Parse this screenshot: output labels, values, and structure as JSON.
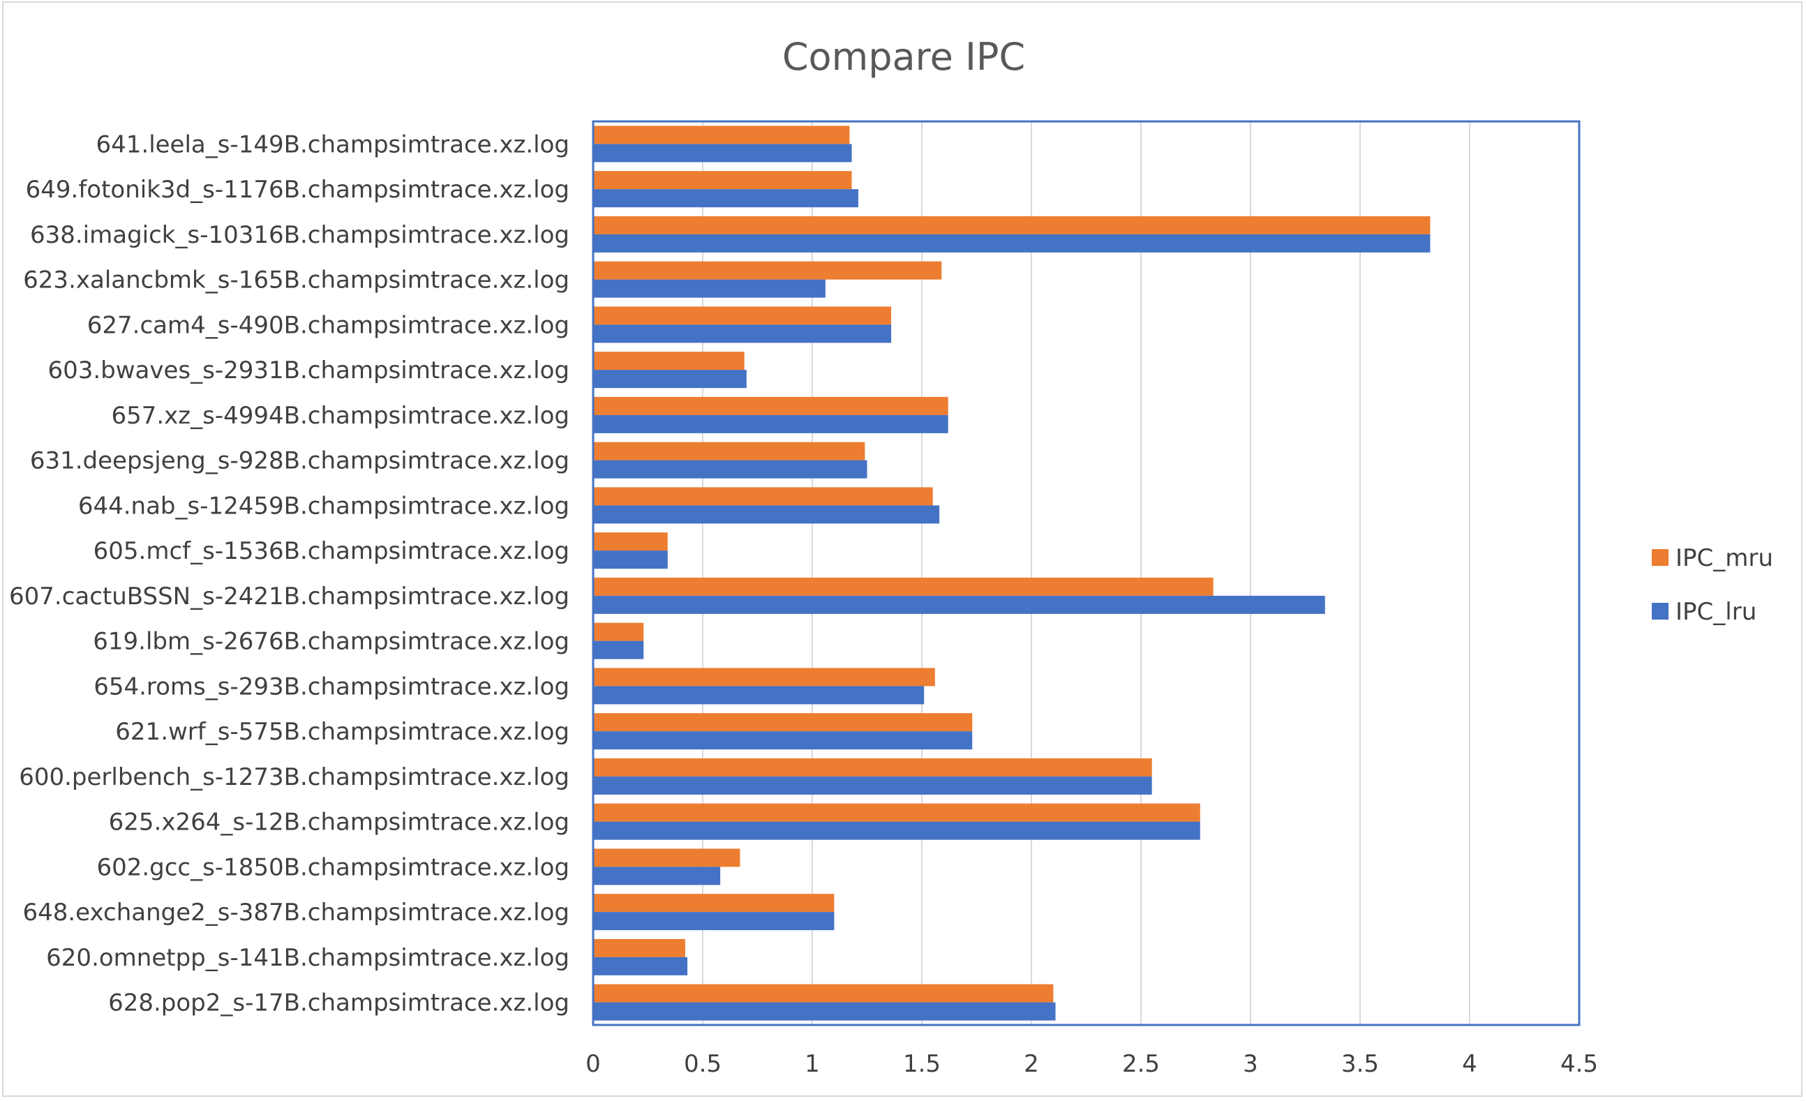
{
  "chart_data": {
    "type": "bar",
    "orientation": "horizontal",
    "title": "Compare IPC",
    "xlabel": "",
    "ylabel": "",
    "xlim": [
      0,
      4.5
    ],
    "x_ticks": [
      "0",
      "0.5",
      "1",
      "1.5",
      "2",
      "2.5",
      "3",
      "3.5",
      "4",
      "4.5"
    ],
    "grid": "vertical",
    "legend_position": "right",
    "categories": [
      "641.leela_s-149B.champsimtrace.xz.log",
      "649.fotonik3d_s-1176B.champsimtrace.xz.log",
      "638.imagick_s-10316B.champsimtrace.xz.log",
      "623.xalancbmk_s-165B.champsimtrace.xz.log",
      "627.cam4_s-490B.champsimtrace.xz.log",
      "603.bwaves_s-2931B.champsimtrace.xz.log",
      "657.xz_s-4994B.champsimtrace.xz.log",
      "631.deepsjeng_s-928B.champsimtrace.xz.log",
      "644.nab_s-12459B.champsimtrace.xz.log",
      "605.mcf_s-1536B.champsimtrace.xz.log",
      "607.cactuBSSN_s-2421B.champsimtrace.xz.log",
      "619.lbm_s-2676B.champsimtrace.xz.log",
      "654.roms_s-293B.champsimtrace.xz.log",
      "621.wrf_s-575B.champsimtrace.xz.log",
      "600.perlbench_s-1273B.champsimtrace.xz.log",
      "625.x264_s-12B.champsimtrace.xz.log",
      "602.gcc_s-1850B.champsimtrace.xz.log",
      "648.exchange2_s-387B.champsimtrace.xz.log",
      "620.omnetpp_s-141B.champsimtrace.xz.log",
      "628.pop2_s-17B.champsimtrace.xz.log"
    ],
    "series": [
      {
        "name": "IPC_mru",
        "color": "#ED7D31",
        "values": [
          1.17,
          1.18,
          3.82,
          1.59,
          1.36,
          0.69,
          1.62,
          1.24,
          1.55,
          0.34,
          2.83,
          0.23,
          1.56,
          1.73,
          2.55,
          2.77,
          0.67,
          1.1,
          0.42,
          2.1
        ]
      },
      {
        "name": "IPC_lru",
        "color": "#4472C4",
        "values": [
          1.18,
          1.21,
          3.82,
          1.06,
          1.36,
          0.7,
          1.62,
          1.25,
          1.58,
          0.34,
          3.34,
          0.23,
          1.51,
          1.73,
          2.55,
          2.77,
          0.58,
          1.1,
          0.43,
          2.11
        ]
      }
    ],
    "legend_order": [
      "IPC_mru",
      "IPC_lru"
    ],
    "colors": {
      "axis": "#4472C4",
      "grid": "#d9d9d9",
      "frame": "#d9d9d9"
    }
  }
}
